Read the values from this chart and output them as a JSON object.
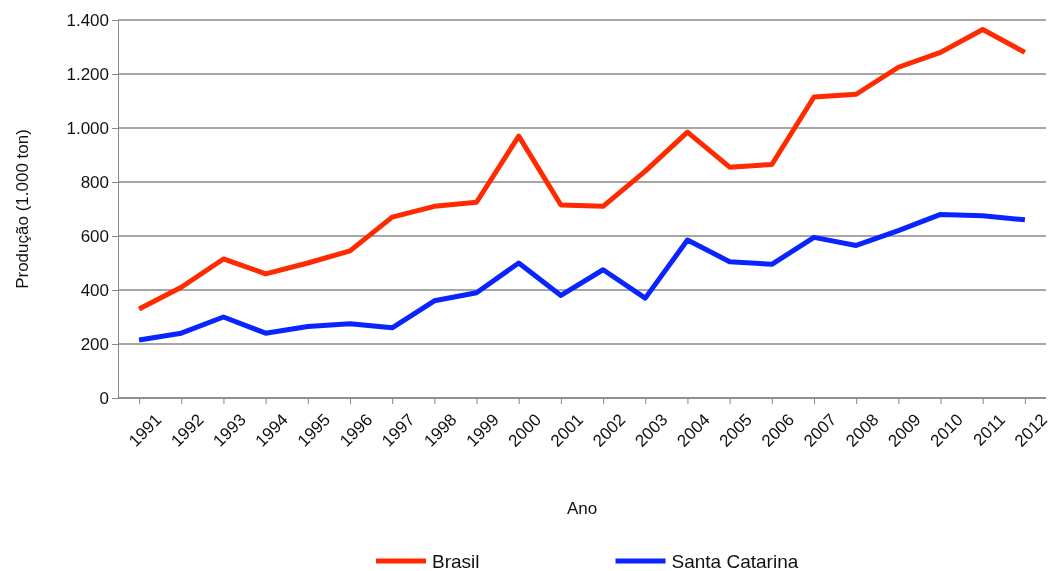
{
  "chart_data": {
    "type": "line",
    "xlabel": "Ano",
    "ylabel": "Produção (1.000 ton)",
    "categories": [
      "1991",
      "1992",
      "1993",
      "1994",
      "1995",
      "1996",
      "1997",
      "1998",
      "1999",
      "2000",
      "2001",
      "2002",
      "2003",
      "2004",
      "2005",
      "2006",
      "2007",
      "2008",
      "2009",
      "2010",
      "2011",
      "2012"
    ],
    "series": [
      {
        "name": "Brasil",
        "color": "#ff2a00",
        "values": [
          330,
          410,
          515,
          460,
          500,
          545,
          670,
          710,
          725,
          970,
          715,
          710,
          840,
          985,
          855,
          865,
          1115,
          1125,
          1225,
          1280,
          1365,
          1280
        ]
      },
      {
        "name": "Santa Catarina",
        "color": "#0a24ff",
        "values": [
          215,
          240,
          300,
          240,
          265,
          275,
          260,
          360,
          390,
          500,
          380,
          475,
          370,
          585,
          505,
          495,
          595,
          565,
          620,
          680,
          675,
          660
        ]
      }
    ],
    "ylim": [
      0,
      1400
    ],
    "yticks": [
      0,
      {
        "value": 200,
        "label": "200"
      },
      {
        "value": 400,
        "label": "400"
      },
      {
        "value": 600,
        "label": "600"
      },
      {
        "value": 800,
        "label": "800"
      },
      {
        "value": 1000,
        "label": "1.000"
      },
      {
        "value": 1200,
        "label": "1.200"
      },
      {
        "value": 1400,
        "label": "1.400"
      }
    ],
    "grid": "y",
    "legend": "bottom",
    "marker": "none",
    "line_style": "solid"
  }
}
